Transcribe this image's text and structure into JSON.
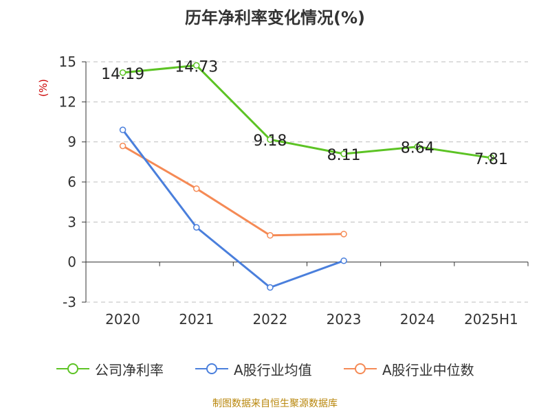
{
  "chart_data": {
    "type": "line",
    "title": "历年净利率变化情况(%)",
    "ylabel": "(%)",
    "categories": [
      "2020",
      "2021",
      "2022",
      "2023",
      "2024",
      "2025H1"
    ],
    "ylim": [
      -3,
      15
    ],
    "yticks": [
      "15",
      "12",
      "9",
      "6",
      "3",
      "0",
      "-3"
    ],
    "grid": true,
    "legend_position": "bottom",
    "series": [
      {
        "name": "公司净利率",
        "color": "#5cc324",
        "values": [
          14.19,
          14.73,
          9.18,
          8.11,
          8.64,
          7.81
        ],
        "labels": [
          "14.19",
          "14.73",
          "9.18",
          "8.11",
          "8.64",
          "7.81"
        ]
      },
      {
        "name": "A股行业均值",
        "color": "#4a7fdc",
        "values": [
          9.9,
          2.6,
          -1.9,
          0.1,
          null,
          null
        ]
      },
      {
        "name": "A股行业中位数",
        "color": "#f58a55",
        "values": [
          8.7,
          5.5,
          2.0,
          2.1,
          null,
          null
        ]
      }
    ],
    "source": "制图数据来自恒生聚源数据库"
  }
}
